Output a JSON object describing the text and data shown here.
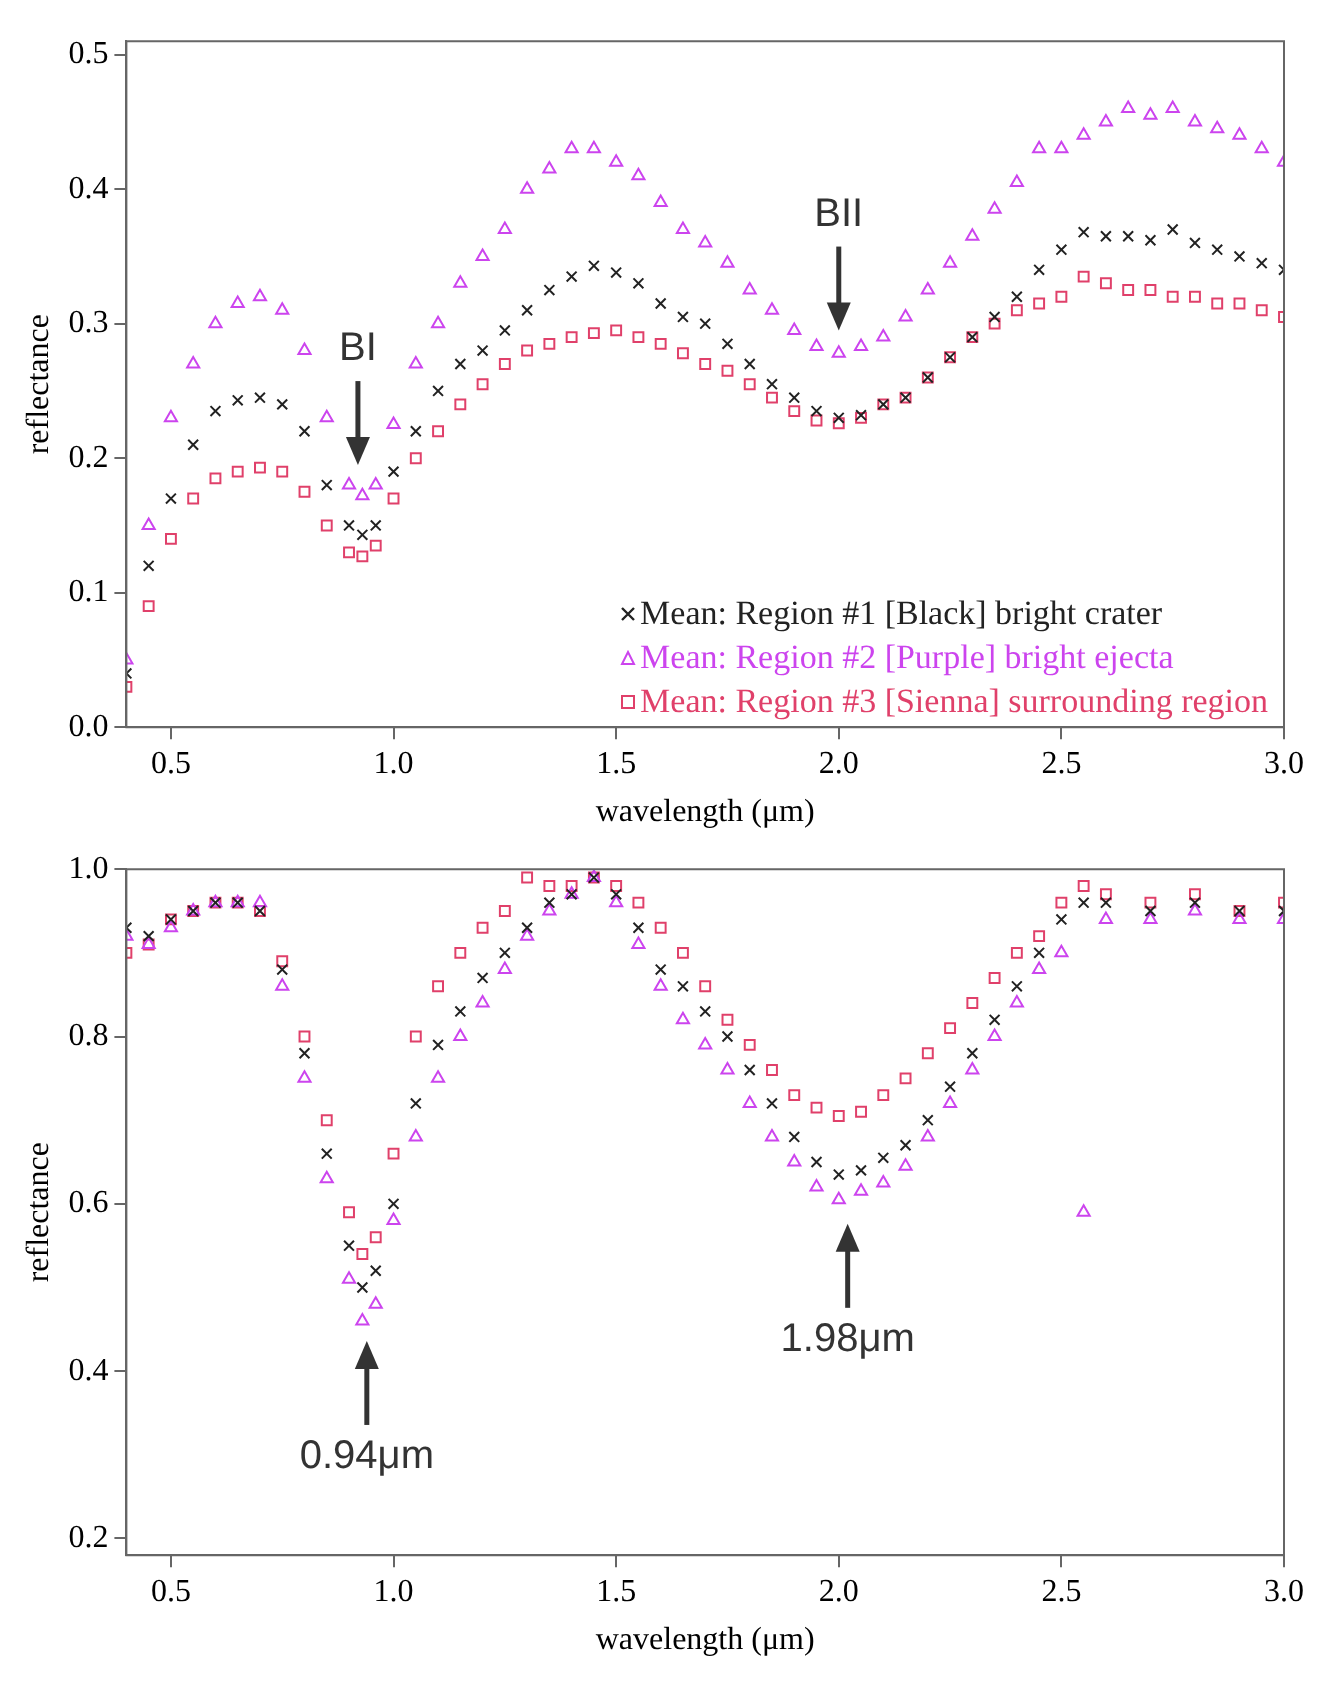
{
  "chart_data": [
    {
      "type": "scatter",
      "xlabel": "wavelength (μm)",
      "ylabel": "reflectance",
      "xlim": [
        0.4,
        3.0
      ],
      "ylim": [
        0,
        0.51
      ],
      "xticks": [
        0.5,
        {
          "value": 1,
          "label": "1.0"
        },
        1.5,
        {
          "value": 2,
          "label": "2.0"
        },
        2.5,
        {
          "value": 3,
          "label": "3.0"
        }
      ],
      "yticks": [
        {
          "value": 0,
          "label": "0.0"
        },
        0.1,
        0.2,
        0.3,
        0.4,
        0.5
      ],
      "grid": false,
      "legend": "bottom right",
      "annotations": [
        {
          "text": "BI",
          "x": 0.92,
          "y": 0.18
        },
        {
          "text": "BII",
          "x": 2.0,
          "y": 0.28
        }
      ],
      "series": [
        {
          "name": "Mean: Region #1 [Black] bright crater",
          "color": "#222222",
          "marker": "cross",
          "x": [
            0.4,
            0.45,
            0.5,
            0.55,
            0.6,
            0.65,
            0.7,
            0.75,
            0.8,
            0.85,
            0.9,
            0.93,
            0.96,
            1.0,
            1.05,
            1.1,
            1.15,
            1.2,
            1.25,
            1.3,
            1.35,
            1.4,
            1.45,
            1.5,
            1.55,
            1.6,
            1.65,
            1.7,
            1.75,
            1.8,
            1.85,
            1.9,
            1.95,
            2.0,
            2.05,
            2.1,
            2.15,
            2.2,
            2.25,
            2.3,
            2.35,
            2.4,
            2.45,
            2.5,
            2.55,
            2.6,
            2.65,
            2.7,
            2.75,
            2.8,
            2.85,
            2.9,
            2.95,
            3.0
          ],
          "values": [
            0.04,
            0.12,
            0.17,
            0.21,
            0.235,
            0.243,
            0.245,
            0.24,
            0.22,
            0.18,
            0.15,
            0.143,
            0.15,
            0.19,
            0.22,
            0.25,
            0.27,
            0.28,
            0.295,
            0.31,
            0.325,
            0.335,
            0.343,
            0.338,
            0.33,
            0.315,
            0.305,
            0.3,
            0.285,
            0.27,
            0.255,
            0.245,
            0.235,
            0.23,
            0.232,
            0.24,
            0.245,
            0.26,
            0.275,
            0.29,
            0.305,
            0.32,
            0.34,
            0.355,
            0.368,
            0.365,
            0.365,
            0.362,
            0.37,
            0.36,
            0.355,
            0.35,
            0.345,
            0.34
          ]
        },
        {
          "name": "Mean: Region #2 [Purple] bright ejecta",
          "color": "#cc44ee",
          "marker": "triangle",
          "x": [
            0.4,
            0.45,
            0.5,
            0.55,
            0.6,
            0.65,
            0.7,
            0.75,
            0.8,
            0.85,
            0.9,
            0.93,
            0.96,
            1.0,
            1.05,
            1.1,
            1.15,
            1.2,
            1.25,
            1.3,
            1.35,
            1.4,
            1.45,
            1.5,
            1.55,
            1.6,
            1.65,
            1.7,
            1.75,
            1.8,
            1.85,
            1.9,
            1.95,
            2.0,
            2.05,
            2.1,
            2.15,
            2.2,
            2.25,
            2.3,
            2.35,
            2.4,
            2.45,
            2.5,
            2.55,
            2.6,
            2.65,
            2.7,
            2.75,
            2.8,
            2.85,
            2.9,
            2.95,
            3.0
          ],
          "values": [
            0.05,
            0.15,
            0.23,
            0.27,
            0.3,
            0.315,
            0.32,
            0.31,
            0.28,
            0.23,
            0.18,
            0.172,
            0.18,
            0.225,
            0.27,
            0.3,
            0.33,
            0.35,
            0.37,
            0.4,
            0.415,
            0.43,
            0.43,
            0.42,
            0.41,
            0.39,
            0.37,
            0.36,
            0.345,
            0.325,
            0.31,
            0.295,
            0.283,
            0.278,
            0.283,
            0.29,
            0.305,
            0.325,
            0.345,
            0.365,
            0.385,
            0.405,
            0.43,
            0.43,
            0.44,
            0.45,
            0.46,
            0.455,
            0.46,
            0.45,
            0.445,
            0.44,
            0.43,
            0.42
          ]
        },
        {
          "name": "Mean: Region #3 [Sienna] surrounding region",
          "color": "#e0406a",
          "marker": "square",
          "x": [
            0.4,
            0.45,
            0.5,
            0.55,
            0.6,
            0.65,
            0.7,
            0.75,
            0.8,
            0.85,
            0.9,
            0.93,
            0.96,
            1.0,
            1.05,
            1.1,
            1.15,
            1.2,
            1.25,
            1.3,
            1.35,
            1.4,
            1.45,
            1.5,
            1.55,
            1.6,
            1.65,
            1.7,
            1.75,
            1.8,
            1.85,
            1.9,
            1.95,
            2.0,
            2.05,
            2.1,
            2.15,
            2.2,
            2.25,
            2.3,
            2.35,
            2.4,
            2.45,
            2.5,
            2.55,
            2.6,
            2.65,
            2.7,
            2.75,
            2.8,
            2.85,
            2.9,
            2.95,
            3.0
          ],
          "values": [
            0.03,
            0.09,
            0.14,
            0.17,
            0.185,
            0.19,
            0.193,
            0.19,
            0.175,
            0.15,
            0.13,
            0.127,
            0.135,
            0.17,
            0.2,
            0.22,
            0.24,
            0.255,
            0.27,
            0.28,
            0.285,
            0.29,
            0.293,
            0.295,
            0.29,
            0.285,
            0.278,
            0.27,
            0.265,
            0.255,
            0.245,
            0.235,
            0.228,
            0.226,
            0.23,
            0.24,
            0.245,
            0.26,
            0.275,
            0.29,
            0.3,
            0.31,
            0.315,
            0.32,
            0.335,
            0.33,
            0.325,
            0.325,
            0.32,
            0.32,
            0.315,
            0.315,
            0.31,
            0.305
          ]
        }
      ]
    },
    {
      "type": "scatter",
      "xlabel": "wavelength (μm)",
      "ylabel": "reflectance",
      "xlim": [
        0.4,
        3.0
      ],
      "ylim": [
        0.18,
        1.0
      ],
      "xticks": [
        0.5,
        {
          "value": 1,
          "label": "1.0"
        },
        1.5,
        {
          "value": 2,
          "label": "2.0"
        },
        2.5,
        {
          "value": 3,
          "label": "3.0"
        }
      ],
      "yticks": [
        0.2,
        0.4,
        0.6,
        0.8,
        {
          "value": 1,
          "label": "1.0"
        }
      ],
      "grid": false,
      "annotations": [
        {
          "text": "0.94μm",
          "x": 0.94,
          "y": 0.46
        },
        {
          "text": "1.98μm",
          "x": 2.02,
          "y": 0.6
        }
      ],
      "series": [
        {
          "color": "#222222",
          "marker": "cross",
          "x": [
            0.4,
            0.45,
            0.5,
            0.55,
            0.6,
            0.65,
            0.7,
            0.75,
            0.8,
            0.85,
            0.9,
            0.93,
            0.96,
            1.0,
            1.05,
            1.1,
            1.15,
            1.2,
            1.25,
            1.3,
            1.35,
            1.4,
            1.45,
            1.5,
            1.55,
            1.6,
            1.65,
            1.7,
            1.75,
            1.8,
            1.85,
            1.9,
            1.95,
            2.0,
            2.05,
            2.1,
            2.15,
            2.2,
            2.25,
            2.3,
            2.35,
            2.4,
            2.45,
            2.5,
            2.55,
            2.6,
            2.7,
            2.8,
            2.9,
            3.0
          ],
          "values": [
            0.93,
            0.92,
            0.94,
            0.95,
            0.96,
            0.96,
            0.95,
            0.88,
            0.78,
            0.66,
            0.55,
            0.5,
            0.52,
            0.6,
            0.72,
            0.79,
            0.83,
            0.87,
            0.9,
            0.93,
            0.96,
            0.97,
            0.99,
            0.97,
            0.93,
            0.88,
            0.86,
            0.83,
            0.8,
            0.76,
            0.72,
            0.68,
            0.65,
            0.635,
            0.64,
            0.655,
            0.67,
            0.7,
            0.74,
            0.78,
            0.82,
            0.86,
            0.9,
            0.94,
            0.96,
            0.96,
            0.95,
            0.96,
            0.95,
            0.95
          ]
        },
        {
          "color": "#cc44ee",
          "marker": "triangle",
          "x": [
            0.4,
            0.45,
            0.5,
            0.55,
            0.6,
            0.65,
            0.7,
            0.75,
            0.8,
            0.85,
            0.9,
            0.93,
            0.96,
            1.0,
            1.05,
            1.1,
            1.15,
            1.2,
            1.25,
            1.3,
            1.35,
            1.4,
            1.45,
            1.5,
            1.55,
            1.6,
            1.65,
            1.7,
            1.75,
            1.8,
            1.85,
            1.9,
            1.95,
            2.0,
            2.05,
            2.1,
            2.15,
            2.2,
            2.25,
            2.3,
            2.35,
            2.4,
            2.45,
            2.5,
            2.55,
            2.6,
            2.7,
            2.8,
            2.9,
            3.0
          ],
          "values": [
            0.92,
            0.91,
            0.93,
            0.95,
            0.96,
            0.96,
            0.96,
            0.86,
            0.75,
            0.63,
            0.51,
            0.46,
            0.48,
            0.58,
            0.68,
            0.75,
            0.8,
            0.84,
            0.88,
            0.92,
            0.95,
            0.97,
            0.99,
            0.96,
            0.91,
            0.86,
            0.82,
            0.79,
            0.76,
            0.72,
            0.68,
            0.65,
            0.62,
            0.605,
            0.615,
            0.625,
            0.645,
            0.68,
            0.72,
            0.76,
            0.8,
            0.84,
            0.88,
            0.9,
            0.59,
            0.94,
            0.94,
            0.95,
            0.94,
            0.94
          ]
        },
        {
          "color": "#e0406a",
          "marker": "square",
          "x": [
            0.4,
            0.45,
            0.5,
            0.55,
            0.6,
            0.65,
            0.7,
            0.75,
            0.8,
            0.85,
            0.9,
            0.93,
            0.96,
            1.0,
            1.05,
            1.1,
            1.15,
            1.2,
            1.25,
            1.3,
            1.35,
            1.4,
            1.45,
            1.5,
            1.55,
            1.6,
            1.65,
            1.7,
            1.75,
            1.8,
            1.85,
            1.9,
            1.95,
            2.0,
            2.05,
            2.1,
            2.15,
            2.2,
            2.25,
            2.3,
            2.35,
            2.4,
            2.45,
            2.5,
            2.55,
            2.6,
            2.7,
            2.8,
            2.9,
            3.0
          ],
          "values": [
            0.9,
            0.91,
            0.94,
            0.95,
            0.96,
            0.96,
            0.95,
            0.89,
            0.8,
            0.7,
            0.59,
            0.54,
            0.56,
            0.66,
            0.8,
            0.86,
            0.9,
            0.93,
            0.95,
            0.99,
            0.98,
            0.98,
            0.99,
            0.98,
            0.96,
            0.93,
            0.9,
            0.86,
            0.82,
            0.79,
            0.76,
            0.73,
            0.715,
            0.705,
            0.71,
            0.73,
            0.75,
            0.78,
            0.81,
            0.84,
            0.87,
            0.9,
            0.92,
            0.96,
            0.98,
            0.97,
            0.96,
            0.97,
            0.95,
            0.96
          ]
        }
      ]
    }
  ]
}
